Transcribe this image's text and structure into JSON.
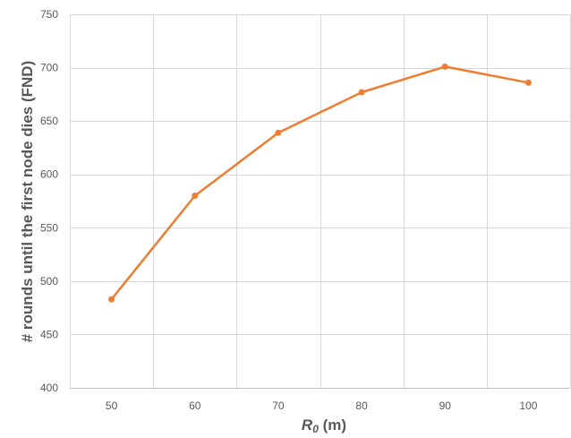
{
  "chart_data": {
    "type": "line",
    "title": "",
    "xlabel_main": "R",
    "xlabel_sub": "0",
    "xlabel_unit": " (m)",
    "ylabel": "# rounds until the first node dies (FND)",
    "x": [
      50,
      60,
      70,
      80,
      90,
      100
    ],
    "series": [
      {
        "values": [
          483,
          580,
          639,
          677,
          701,
          686
        ]
      }
    ],
    "ylim": [
      400,
      750
    ],
    "yticks": [
      400,
      450,
      500,
      550,
      600,
      650,
      700,
      750
    ],
    "grid": true,
    "line_color": "#ED7D31",
    "grid_color": "#D9D9D9",
    "text_color": "#595959"
  }
}
